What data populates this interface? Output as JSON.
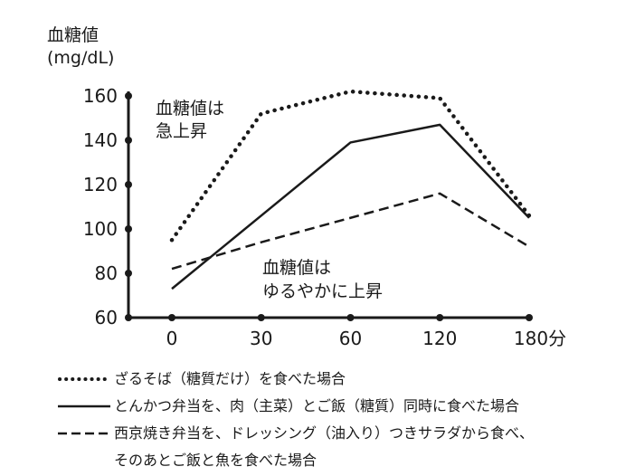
{
  "chart_data": {
    "type": "line",
    "ylabel_line1": "血糖値",
    "ylabel_line2": "(mg/dL)",
    "categories": [
      "0",
      "30",
      "60",
      "120",
      "180分"
    ],
    "yticks": [
      60,
      80,
      100,
      120,
      140,
      160
    ],
    "ylim": [
      60,
      162
    ],
    "grid": false,
    "series": [
      {
        "name": "ざるそば（糖質だけ）を食べた場合",
        "style": "dotted",
        "values": [
          95,
          152,
          162,
          159,
          106
        ]
      },
      {
        "name": "とんかつ弁当を、肉（主菜）とご飯（糖質）同時に食べた場合",
        "style": "solid",
        "values": [
          73,
          106,
          139,
          147,
          105
        ]
      },
      {
        "name": "西京焼き弁当を、ドレッシング（油入り）つきサラダから食べ、そのあとご飯と魚を食べた場合",
        "name_line1": "西京焼き弁当を、ドレッシング（油入り）つきサラダから食べ、",
        "name_line2": "そのあとご飯と魚を食べた場合",
        "style": "dashed",
        "values": [
          82,
          94,
          105,
          116,
          92
        ]
      }
    ],
    "annotations": [
      {
        "line1": "血糖値は",
        "line2": "急上昇",
        "near": "dotted"
      },
      {
        "line1": "血糖値は",
        "line2": "ゆるやかに上昇",
        "near": "dashed"
      }
    ],
    "colors": {
      "ink": "#1a1a1a"
    },
    "legend_placement": "bottom"
  }
}
